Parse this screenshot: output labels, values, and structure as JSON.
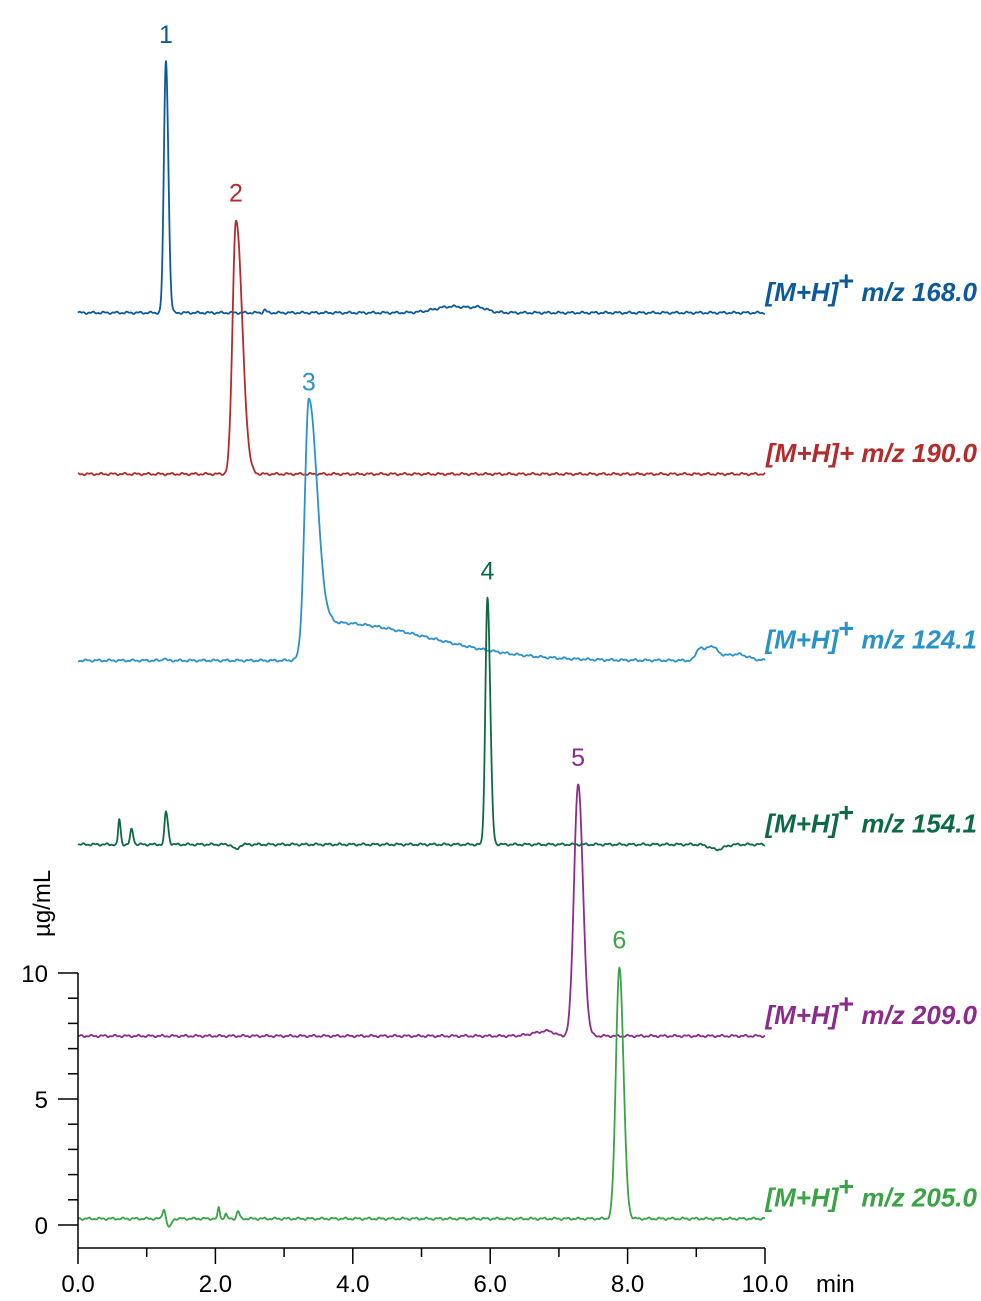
{
  "chart_data": {
    "type": "line",
    "xlabel": "min",
    "ylabel": "µg/mL",
    "xlim": [
      0,
      10
    ],
    "ylim": [
      0,
      10
    ],
    "x_ticks": [
      0.0,
      2.0,
      4.0,
      6.0,
      8.0,
      10.0
    ],
    "x_tick_labels": [
      "0.0",
      "2.0",
      "4.0",
      "6.0",
      "8.0",
      "10.0"
    ],
    "y_ticks": [
      0,
      5,
      10
    ],
    "y_tick_labels": [
      "0",
      "5",
      "10"
    ],
    "grid": false,
    "series": [
      {
        "peak_label": "1",
        "trace_label": [
          "[M+H]",
          "+",
          " m/z 168.0"
        ],
        "color": "#0d5a9a",
        "baseline": 36.2,
        "peaks": [
          {
            "t": 1.28,
            "h": 10.0,
            "wl": 0.03,
            "wr": 0.035
          },
          {
            "t": 2.72,
            "h": 0.12,
            "wl": 0.02,
            "wr": 0.02
          },
          {
            "t": 5.45,
            "h": 0.25,
            "wl": 0.25,
            "wr": 0.3
          },
          {
            "t": 5.85,
            "h": 0.12,
            "wl": 0.1,
            "wr": 0.1
          }
        ]
      },
      {
        "peak_label": "2",
        "trace_label": [
          "[M+H]+ m/z 190.0"
        ],
        "color": "#b52a2b",
        "baseline": 29.8,
        "peaks": [
          {
            "t": 2.3,
            "h": 10.1,
            "wl": 0.05,
            "wr": 0.09
          }
        ]
      },
      {
        "peak_label": "3",
        "trace_label": [
          "[M+H]",
          "+",
          " m/z 124.1"
        ],
        "color": "#2a92cb",
        "baseline": 22.4,
        "peaks": [
          {
            "t": 3.36,
            "h": 10.0,
            "wl": 0.06,
            "wr": 0.12
          },
          {
            "t": 3.7,
            "h": 1.5,
            "wl": 0.2,
            "wr": 1.4
          },
          {
            "t": 1.25,
            "h": 0.1,
            "wl": 0.02,
            "wr": 0.02
          },
          {
            "t": 9.05,
            "h": 0.5,
            "wl": 0.05,
            "wr": 0.05
          },
          {
            "t": 9.2,
            "h": 0.55,
            "wl": 0.06,
            "wr": 0.1
          },
          {
            "t": 9.6,
            "h": 0.25,
            "wl": 0.2,
            "wr": 0.15
          }
        ]
      },
      {
        "peak_label": "4",
        "trace_label": [
          "[M+H]",
          "+",
          " m/z 154.1"
        ],
        "color": "#0e6a46",
        "baseline": 15.1,
        "peaks": [
          {
            "t": 5.96,
            "h": 9.8,
            "wl": 0.03,
            "wr": 0.04
          },
          {
            "t": 0.6,
            "h": 1.0,
            "wl": 0.015,
            "wr": 0.02
          },
          {
            "t": 0.78,
            "h": 0.6,
            "wl": 0.02,
            "wr": 0.025
          },
          {
            "t": 1.28,
            "h": 1.3,
            "wl": 0.02,
            "wr": 0.03
          },
          {
            "t": 2.3,
            "h": -0.2,
            "wl": 0.04,
            "wr": 0.04
          },
          {
            "t": 9.3,
            "h": -0.2,
            "wl": 0.1,
            "wr": 0.1
          }
        ]
      },
      {
        "peak_label": "5",
        "trace_label": [
          "[M+H]",
          "+",
          " m/z 209.0"
        ],
        "color": "#8a2c8b",
        "baseline": 7.5,
        "peaks": [
          {
            "t": 7.28,
            "h": 10.0,
            "wl": 0.06,
            "wr": 0.07
          },
          {
            "t": 6.85,
            "h": 0.2,
            "wl": 0.2,
            "wr": 0.08
          }
        ]
      },
      {
        "peak_label": "6",
        "trace_label": [
          "[M+H]",
          "+",
          " m/z 205.0"
        ],
        "color": "#3aa345",
        "baseline": 0.25,
        "peaks": [
          {
            "t": 7.88,
            "h": 10.0,
            "wl": 0.05,
            "wr": 0.06
          },
          {
            "t": 1.25,
            "h": 0.4,
            "wl": 0.02,
            "wr": 0.02
          },
          {
            "t": 1.33,
            "h": -0.35,
            "wl": 0.03,
            "wr": 0.03
          },
          {
            "t": 2.05,
            "h": 0.45,
            "wl": 0.015,
            "wr": 0.015
          },
          {
            "t": 2.15,
            "h": 0.2,
            "wl": 0.015,
            "wr": 0.015
          },
          {
            "t": 2.33,
            "h": 0.3,
            "wl": 0.02,
            "wr": 0.02
          }
        ]
      }
    ]
  }
}
